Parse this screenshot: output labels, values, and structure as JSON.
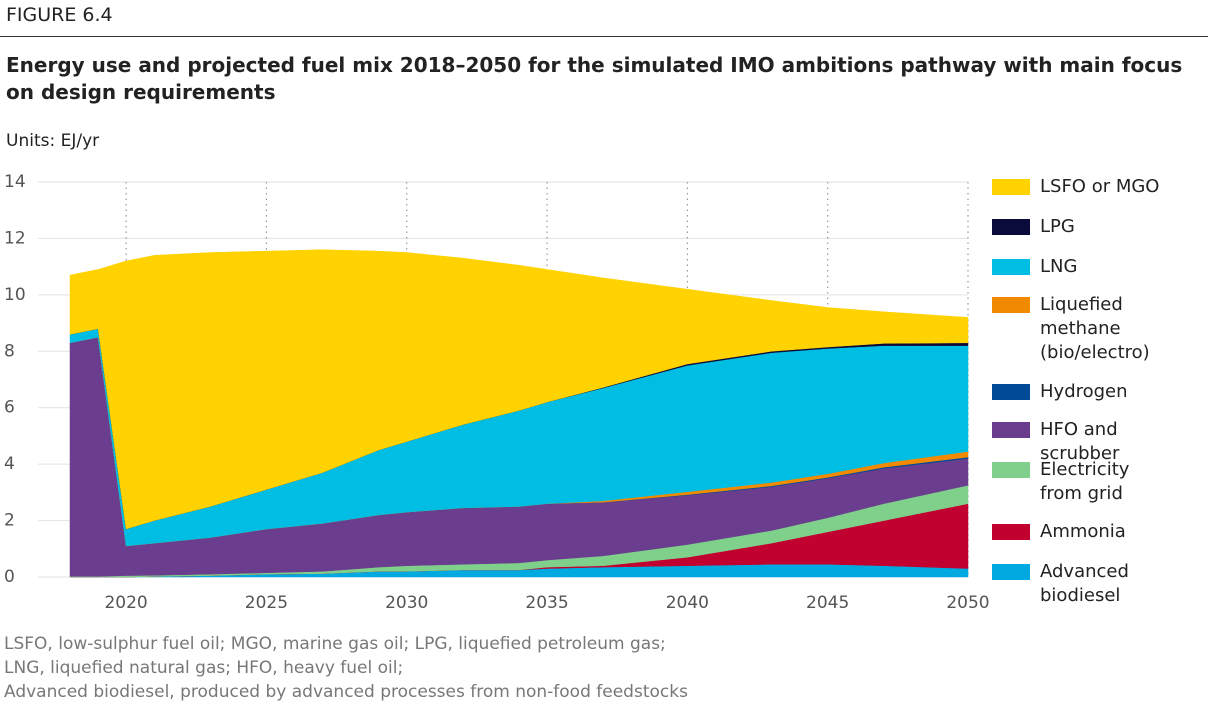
{
  "chart_data": {
    "type": "stacked_area",
    "figure": "FIGURE 6.4",
    "title": "Energy use and projected fuel mix 2018–2050 for the simulated IMO ambitions pathway with main focus on design requirements",
    "units": "Units: EJ/yr",
    "x": [
      2018,
      2019,
      2020,
      2021,
      2023,
      2025,
      2027,
      2029,
      2030,
      2032,
      2034,
      2035,
      2037,
      2040,
      2043,
      2045,
      2047,
      2050
    ],
    "xlim": [
      2018,
      2050
    ],
    "xticks": [
      2020,
      2025,
      2030,
      2035,
      2040,
      2045,
      2050
    ],
    "ylim": [
      0,
      14
    ],
    "yticks": [
      0,
      2,
      4,
      6,
      8,
      10,
      12,
      14
    ],
    "grid": true,
    "series": [
      {
        "name": "Advanced biodiesel",
        "color": "#00a9e0",
        "values": [
          0,
          0,
          0,
          0.02,
          0.05,
          0.1,
          0.12,
          0.2,
          0.2,
          0.25,
          0.25,
          0.3,
          0.35,
          0.4,
          0.45,
          0.45,
          0.4,
          0.3
        ]
      },
      {
        "name": "Ammonia",
        "color": "#c10230",
        "values": [
          0,
          0,
          0,
          0,
          0,
          0,
          0,
          0,
          0,
          0,
          0,
          0.05,
          0.05,
          0.3,
          0.75,
          1.15,
          1.6,
          2.3
        ]
      },
      {
        "name": "Electricity from grid",
        "color": "#7ed08a",
        "values": [
          0.02,
          0.02,
          0.05,
          0.04,
          0.05,
          0.05,
          0.08,
          0.15,
          0.2,
          0.2,
          0.25,
          0.25,
          0.35,
          0.45,
          0.45,
          0.5,
          0.6,
          0.65
        ]
      },
      {
        "name": "HFO and scrubber",
        "color": "#6a3d8e",
        "values": [
          8.28,
          8.48,
          1.05,
          1.14,
          1.3,
          1.55,
          1.7,
          1.85,
          1.9,
          2.0,
          2.0,
          2.0,
          1.9,
          1.75,
          1.55,
          1.4,
          1.25,
          0.95
        ]
      },
      {
        "name": "Hydrogen",
        "color": "#004a97",
        "values": [
          0,
          0,
          0,
          0,
          0,
          0,
          0,
          0,
          0,
          0,
          0,
          0,
          0,
          0.02,
          0.03,
          0.03,
          0.04,
          0.05
        ]
      },
      {
        "name": "Liquefied methane (bio/electro)",
        "color": "#f18a00",
        "values": [
          0,
          0,
          0,
          0,
          0,
          0,
          0,
          0,
          0,
          0,
          0,
          0,
          0.05,
          0.1,
          0.12,
          0.13,
          0.15,
          0.2
        ]
      },
      {
        "name": "LNG",
        "color": "#00bee3",
        "values": [
          0.3,
          0.3,
          0.6,
          0.8,
          1.1,
          1.4,
          1.8,
          2.3,
          2.5,
          2.95,
          3.4,
          3.6,
          4.0,
          4.48,
          4.6,
          4.44,
          4.16,
          3.75
        ]
      },
      {
        "name": "LPG",
        "color": "#0b0b3b",
        "values": [
          0,
          0,
          0,
          0,
          0,
          0,
          0,
          0,
          0,
          0,
          0,
          0,
          0.02,
          0.05,
          0.05,
          0.05,
          0.08,
          0.1
        ]
      },
      {
        "name": "LSFO or MGO",
        "color": "#ffd200",
        "values": [
          2.1,
          2.1,
          9.5,
          9.4,
          9.0,
          8.45,
          7.9,
          7.05,
          6.7,
          5.9,
          5.15,
          4.7,
          3.88,
          2.65,
          1.8,
          1.4,
          1.12,
          0.9
        ]
      }
    ],
    "notes": [
      "LSFO, low-sulphur fuel oil; MGO, marine gas oil; LPG, liquefied petroleum gas;",
      "LNG, liquefied natural gas; HFO, heavy fuel oil;",
      "Advanced biodiesel, produced by advanced processes from non-food feedstocks"
    ]
  }
}
